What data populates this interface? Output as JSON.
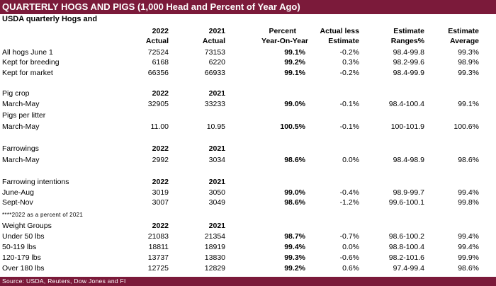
{
  "title": "QUARTERLY HOGS AND PIGS (1,000 Head and Percent of Year Ago)",
  "subtitle": "USDA quarterly Hogs and",
  "header": {
    "line1": [
      "2022",
      "2021",
      "Percent",
      "Actual less",
      "Estimate",
      "Estimate"
    ],
    "line2": [
      "Actual",
      "Actual",
      "Year-On-Year",
      "Estimate",
      "Ranges%",
      "Average"
    ]
  },
  "rows": [
    {
      "label": "All hogs June 1",
      "c1": "72524",
      "c2": "73153",
      "c3": "99.1%",
      "c4": "-0.2%",
      "c5": "98.4-99.8",
      "c6": "99.3%"
    },
    {
      "label": "Kept for breeding",
      "c1": "6168",
      "c2": "6220",
      "c3": "99.2%",
      "c4": "0.3%",
      "c5": "98.2-99.6",
      "c6": "98.9%"
    },
    {
      "label": "Kept for market",
      "c1": "66356",
      "c2": "66933",
      "c3": "99.1%",
      "c4": "-0.2%",
      "c5": "98.4-99.9",
      "c6": "99.3%"
    },
    {
      "label": "Pig crop",
      "c1": "2022",
      "c2": "2021",
      "c3": "",
      "c4": "",
      "c5": "",
      "c6": ""
    },
    {
      "label": "March-May",
      "c1": "32905",
      "c2": "33233",
      "c3": "99.0%",
      "c4": "-0.1%",
      "c5": "98.4-100.4",
      "c6": "99.1%"
    },
    {
      "label": "Pigs per litter",
      "c1": "",
      "c2": "",
      "c3": "",
      "c4": "",
      "c5": "",
      "c6": ""
    },
    {
      "label": "March-May",
      "c1": "11.00",
      "c2": "10.95",
      "c3": "100.5%",
      "c4": "-0.1%",
      "c5": "100-101.9",
      "c6": "100.6%"
    },
    {
      "label": "",
      "c1": "",
      "c2": "",
      "c3": "",
      "c4": "",
      "c5": "",
      "c6": ""
    },
    {
      "label": "Farrowings",
      "c1": "2022",
      "c2": "2021",
      "c3": "",
      "c4": "",
      "c5": "",
      "c6": ""
    },
    {
      "label": "March-May",
      "c1": "2992",
      "c2": "3034",
      "c3": "98.6%",
      "c4": "0.0%",
      "c5": "98.4-98.9",
      "c6": "98.6%"
    },
    {
      "label": "",
      "c1": "",
      "c2": "",
      "c3": "",
      "c4": "",
      "c5": "",
      "c6": ""
    },
    {
      "label": "Farrowing intentions",
      "c1": "2022",
      "c2": "2021",
      "c3": "",
      "c4": "",
      "c5": "",
      "c6": ""
    },
    {
      "label": "June-Aug",
      "c1": "3019",
      "c2": "3050",
      "c3": "99.0%",
      "c4": "-0.4%",
      "c5": "98.9-99.7",
      "c6": "99.4%"
    },
    {
      "label": "Sept-Nov",
      "c1": "3007",
      "c2": "3049",
      "c3": "98.6%",
      "c4": "-1.2%",
      "c5": "99.6-100.1",
      "c6": "99.8%"
    },
    {
      "label": "****2022 as a percent of 2021",
      "c1": "",
      "c2": "",
      "c3": "",
      "c4": "",
      "c5": "",
      "c6": ""
    },
    {
      "label": "Weight Groups",
      "c1": "2022",
      "c2": "2021",
      "c3": "",
      "c4": "",
      "c5": "",
      "c6": ""
    },
    {
      "label": "Under 50 lbs",
      "c1": "21083",
      "c2": "21354",
      "c3": "98.7%",
      "c4": "-0.7%",
      "c5": "98.6-100.2",
      "c6": "99.4%"
    },
    {
      "label": "50-119 lbs",
      "c1": "18811",
      "c2": "18919",
      "c3": "99.4%",
      "c4": "0.0%",
      "c5": "98.8-100.4",
      "c6": "99.4%"
    },
    {
      "label": "120-179 lbs",
      "c1": "13737",
      "c2": "13830",
      "c3": "99.3%",
      "c4": "-0.6%",
      "c5": "98.2-101.6",
      "c6": "99.9%"
    },
    {
      "label": "Over 180 lbs",
      "c1": "12725",
      "c2": "12829",
      "c3": "99.2%",
      "c4": "0.6%",
      "c5": "97.4-99.4",
      "c6": "98.6%"
    }
  ],
  "source": "Source: USDA, Reuters, Dow Jones and FI",
  "colors": {
    "accent": "#7b1a3a",
    "text": "#000000",
    "background": "#ffffff"
  }
}
